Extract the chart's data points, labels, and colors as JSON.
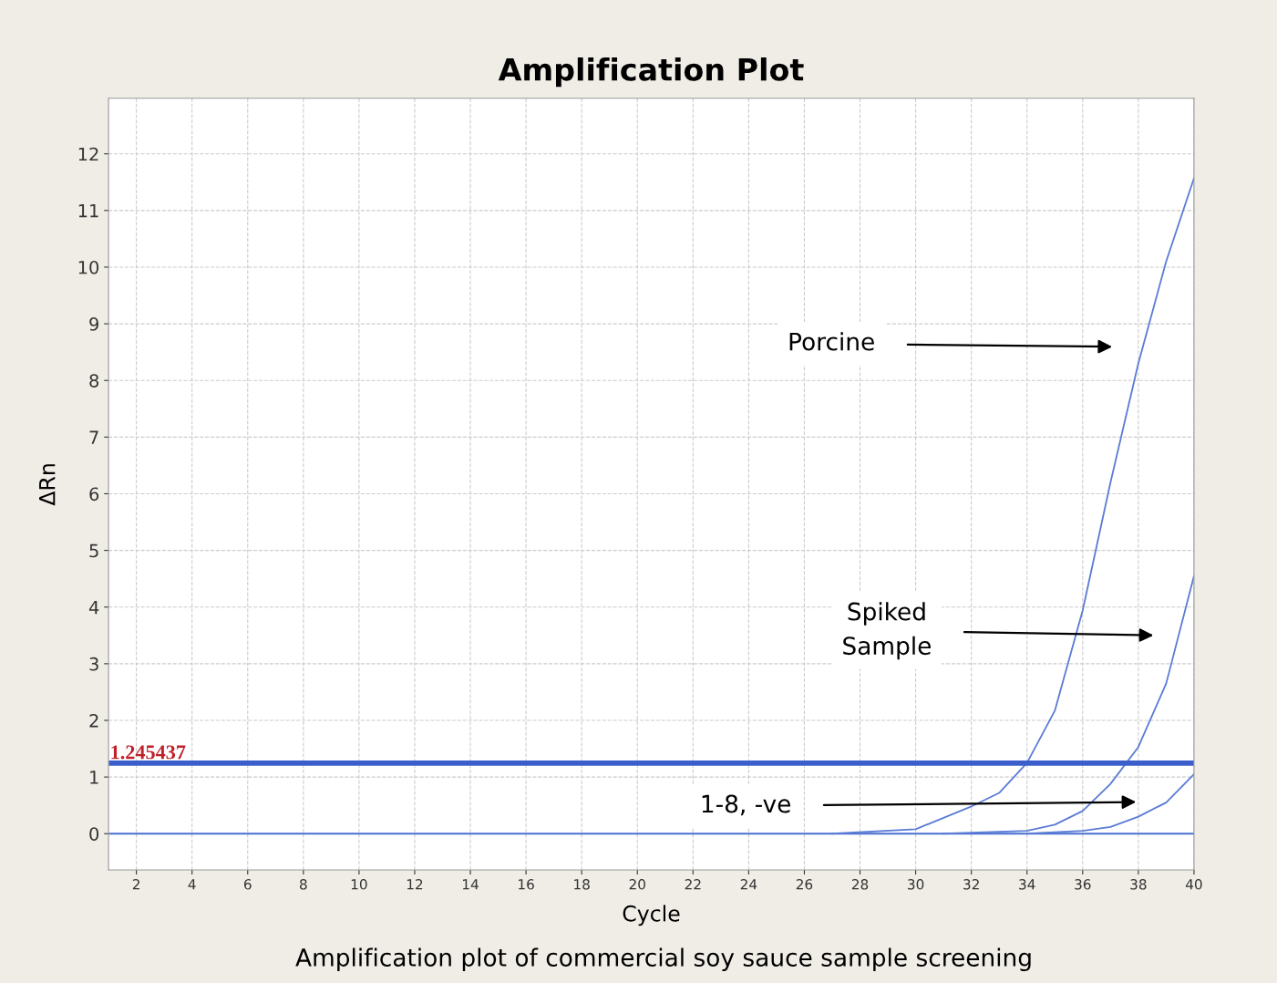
{
  "chart_data": {
    "type": "line",
    "title": "Amplification Plot",
    "xlabel": "Cycle",
    "ylabel": "ΔRn",
    "xlim": [
      1,
      40
    ],
    "xticks": [
      2,
      4,
      6,
      8,
      10,
      12,
      14,
      16,
      18,
      20,
      22,
      24,
      26,
      28,
      30,
      32,
      34,
      36,
      38,
      40
    ],
    "ylim": [
      -0.64,
      12.98
    ],
    "yticks": [
      0,
      1,
      2,
      3,
      4,
      5,
      6,
      7,
      8,
      9,
      10,
      11,
      12
    ],
    "grid": true,
    "line_style": "solid",
    "marker": "none",
    "series": [
      {
        "color": "#4a6fd0",
        "x": [
          1,
          40
        ],
        "values": [
          0,
          0
        ]
      },
      {
        "color": "#5b7bd5",
        "x": [
          27,
          30,
          32,
          33,
          34,
          35,
          36,
          37,
          38,
          39,
          40
        ],
        "values": [
          0,
          0.08,
          0.48,
          0.72,
          1.25,
          2.17,
          3.94,
          6.2,
          8.3,
          10.1,
          11.57
        ]
      },
      {
        "color": "#5b7bd5",
        "x": [
          31,
          34,
          35,
          36,
          37,
          38,
          39,
          40
        ],
        "values": [
          0,
          0.05,
          0.16,
          0.4,
          0.88,
          1.53,
          2.65,
          4.55
        ]
      },
      {
        "color": "#5b7bd5",
        "x": [
          34,
          36,
          37,
          38,
          39,
          40
        ],
        "values": [
          0,
          0.05,
          0.12,
          0.3,
          0.55,
          1.05
        ]
      }
    ],
    "ref_lines": [
      {
        "axis": "y",
        "value": 1.245437,
        "label": "1.245437",
        "color": "#3a5fcd"
      }
    ],
    "annotations": [
      "Porcine",
      "Spiked\nSample",
      "1-8, -ve",
      "Amplification plot of commercial soy sauce sample screening"
    ]
  }
}
